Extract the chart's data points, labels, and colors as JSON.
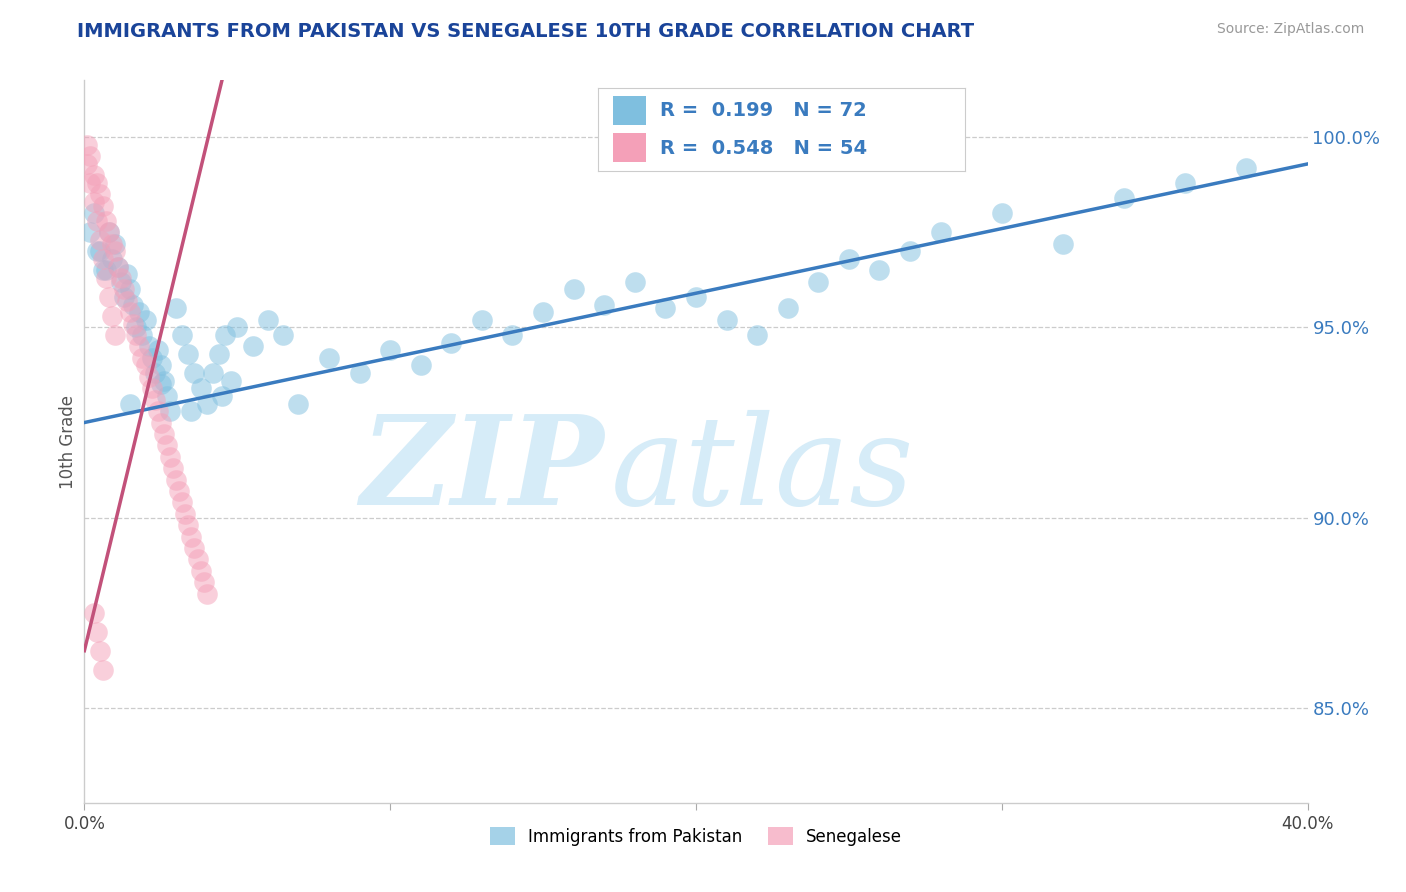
{
  "title": "IMMIGRANTS FROM PAKISTAN VS SENEGALESE 10TH GRADE CORRELATION CHART",
  "source": "Source: ZipAtlas.com",
  "ylabel": "10th Grade",
  "yticks": [
    "100.0%",
    "95.0%",
    "90.0%",
    "85.0%"
  ],
  "ytick_values": [
    1.0,
    0.95,
    0.9,
    0.85
  ],
  "xlim": [
    0.0,
    0.4
  ],
  "ylim": [
    0.825,
    1.015
  ],
  "legend1_label": "Immigrants from Pakistan",
  "legend2_label": "Senegalese",
  "R1": "0.199",
  "N1": "72",
  "R2": "0.548",
  "N2": "54",
  "blue_color": "#7fbfdf",
  "pink_color": "#f4a0b8",
  "blue_line_color": "#3a7bbf",
  "pink_line_color": "#c2517a",
  "title_color": "#1a4499",
  "watermark_color": "#d6ecf8",
  "blue_line_x0": 0.0,
  "blue_line_y0": 0.925,
  "blue_line_x1": 0.4,
  "blue_line_y1": 0.993,
  "pink_line_x0": 0.0,
  "pink_line_y0": 0.865,
  "pink_line_x1": 0.045,
  "pink_line_y1": 1.015,
  "blue_x": [
    0.005,
    0.007,
    0.008,
    0.009,
    0.01,
    0.011,
    0.012,
    0.013,
    0.014,
    0.015,
    0.016,
    0.017,
    0.018,
    0.019,
    0.02,
    0.021,
    0.022,
    0.023,
    0.024,
    0.025,
    0.026,
    0.027,
    0.028,
    0.03,
    0.032,
    0.034,
    0.036,
    0.038,
    0.04,
    0.042,
    0.044,
    0.046,
    0.048,
    0.05,
    0.055,
    0.06,
    0.065,
    0.07,
    0.08,
    0.09,
    0.1,
    0.11,
    0.12,
    0.13,
    0.14,
    0.15,
    0.16,
    0.17,
    0.18,
    0.19,
    0.2,
    0.21,
    0.22,
    0.23,
    0.24,
    0.25,
    0.26,
    0.27,
    0.28,
    0.3,
    0.32,
    0.34,
    0.36,
    0.38,
    0.002,
    0.003,
    0.004,
    0.006,
    0.015,
    0.025,
    0.035,
    0.045
  ],
  "blue_y": [
    0.97,
    0.965,
    0.975,
    0.968,
    0.972,
    0.966,
    0.962,
    0.958,
    0.964,
    0.96,
    0.956,
    0.95,
    0.954,
    0.948,
    0.952,
    0.945,
    0.942,
    0.938,
    0.944,
    0.94,
    0.936,
    0.932,
    0.928,
    0.955,
    0.948,
    0.943,
    0.938,
    0.934,
    0.93,
    0.938,
    0.943,
    0.948,
    0.936,
    0.95,
    0.945,
    0.952,
    0.948,
    0.93,
    0.942,
    0.938,
    0.944,
    0.94,
    0.946,
    0.952,
    0.948,
    0.954,
    0.96,
    0.956,
    0.962,
    0.955,
    0.958,
    0.952,
    0.948,
    0.955,
    0.962,
    0.968,
    0.965,
    0.97,
    0.975,
    0.98,
    0.972,
    0.984,
    0.988,
    0.992,
    0.975,
    0.98,
    0.97,
    0.965,
    0.93,
    0.935,
    0.928,
    0.932
  ],
  "pink_x": [
    0.002,
    0.003,
    0.004,
    0.005,
    0.006,
    0.007,
    0.008,
    0.009,
    0.01,
    0.011,
    0.012,
    0.013,
    0.014,
    0.015,
    0.016,
    0.017,
    0.018,
    0.019,
    0.02,
    0.021,
    0.022,
    0.023,
    0.024,
    0.025,
    0.026,
    0.027,
    0.028,
    0.029,
    0.03,
    0.031,
    0.032,
    0.033,
    0.034,
    0.035,
    0.036,
    0.037,
    0.038,
    0.039,
    0.04,
    0.001,
    0.001,
    0.002,
    0.003,
    0.004,
    0.005,
    0.006,
    0.007,
    0.008,
    0.009,
    0.01,
    0.003,
    0.004,
    0.005,
    0.006
  ],
  "pink_y": [
    0.995,
    0.99,
    0.988,
    0.985,
    0.982,
    0.978,
    0.975,
    0.972,
    0.97,
    0.966,
    0.963,
    0.96,
    0.957,
    0.954,
    0.951,
    0.948,
    0.945,
    0.942,
    0.94,
    0.937,
    0.934,
    0.931,
    0.928,
    0.925,
    0.922,
    0.919,
    0.916,
    0.913,
    0.91,
    0.907,
    0.904,
    0.901,
    0.898,
    0.895,
    0.892,
    0.889,
    0.886,
    0.883,
    0.88,
    0.998,
    0.993,
    0.988,
    0.983,
    0.978,
    0.973,
    0.968,
    0.963,
    0.958,
    0.953,
    0.948,
    0.875,
    0.87,
    0.865,
    0.86
  ]
}
